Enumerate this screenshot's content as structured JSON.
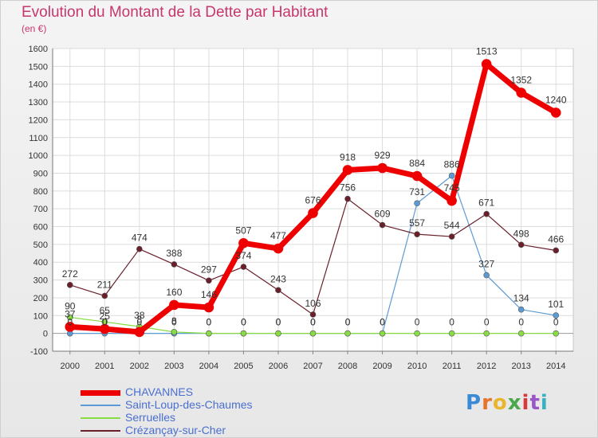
{
  "title": "Evolution du Montant de la Dette par Habitant",
  "subtitle": "(en €)",
  "logo": "Proxiti",
  "chart_data": {
    "type": "line",
    "x": [
      "2000",
      "2001",
      "2002",
      "2003",
      "2004",
      "2005",
      "2006",
      "2007",
      "2008",
      "2009",
      "2010",
      "2011",
      "2012",
      "2013",
      "2014"
    ],
    "ylim": [
      -100,
      1600
    ],
    "yticks": [
      -100,
      0,
      100,
      200,
      300,
      400,
      500,
      600,
      700,
      800,
      900,
      1000,
      1100,
      1200,
      1300,
      1400,
      1500,
      1600
    ],
    "grid": true,
    "legend_position": "bottom-left",
    "series": [
      {
        "name": "CHAVANNES",
        "color": "#ee0000",
        "values": [
          37,
          25,
          8,
          160,
          146,
          507,
          477,
          676,
          918,
          929,
          884,
          745,
          1513,
          1352,
          1240
        ]
      },
      {
        "name": "Saint-Loup-des-Chaumes",
        "color": "#5b9bd5",
        "values": [
          0,
          0,
          0,
          0,
          0,
          0,
          0,
          0,
          0,
          0,
          731,
          886,
          327,
          134,
          101
        ]
      },
      {
        "name": "Serruelles",
        "color": "#88dd44",
        "values": [
          90,
          65,
          38,
          8,
          0,
          0,
          0,
          0,
          0,
          0,
          0,
          0,
          0,
          0,
          0
        ]
      },
      {
        "name": "Crézançay-sur-Cher",
        "color": "#6b1f2a",
        "values": [
          272,
          211,
          474,
          388,
          297,
          374,
          243,
          106,
          756,
          609,
          557,
          544,
          671,
          498,
          466
        ]
      }
    ]
  }
}
